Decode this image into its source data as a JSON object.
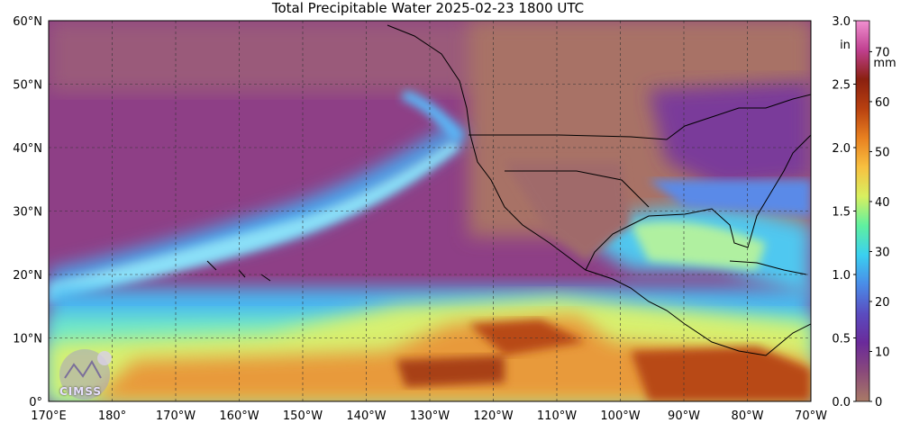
{
  "title": "Total Precipitable Water  2025-02-23 1800 UTC",
  "lat_labels": [
    "60°N",
    "50°N",
    "40°N",
    "30°N",
    "20°N",
    "10°N",
    "0°"
  ],
  "lon_labels": [
    "170°E",
    "180°",
    "170°W",
    "160°W",
    "150°W",
    "140°W",
    "130°W",
    "120°W",
    "110°W",
    "100°W",
    "90°W",
    "80°W",
    "70°W"
  ],
  "colorbar": {
    "units_in": "in",
    "units_mm": "mm",
    "in_ticks": [
      "3.0",
      "2.5",
      "2.0",
      "1.5",
      "1.0",
      "0.5",
      "0.0"
    ],
    "in_values": [
      3.0,
      2.5,
      2.0,
      1.5,
      1.0,
      0.5,
      0.0
    ],
    "mm_ticks": [
      "70",
      "60",
      "50",
      "40",
      "30",
      "20",
      "10",
      "0"
    ],
    "mm_values": [
      70,
      60,
      50,
      40,
      30,
      20,
      10,
      0
    ],
    "max_mm": 76.2,
    "colors": [
      "#a97a66",
      "#8a4a7a",
      "#6a2a9a",
      "#5a4cc0",
      "#4a8ce8",
      "#3ad0f0",
      "#5ff0a0",
      "#d8f060",
      "#f8c040",
      "#e88020",
      "#b84010",
      "#8a2010",
      "#c04090",
      "#f090d0"
    ]
  },
  "logo": "CIMSS"
}
